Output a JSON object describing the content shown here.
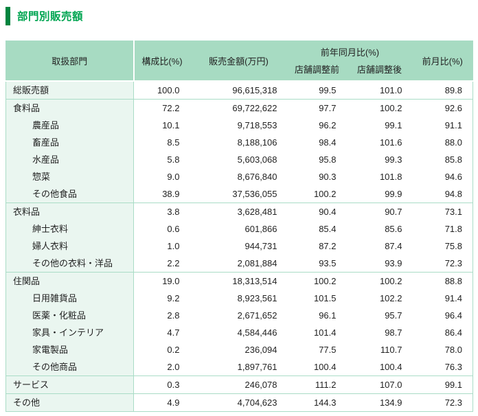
{
  "page": {
    "title": "部門別販売額"
  },
  "colors": {
    "accent_text": "#00a551",
    "accent_bar": "#00843f",
    "header_bg": "#a7dbc2",
    "label_column_bg": "#eaf6f0",
    "table_border": "#a9dcc6",
    "text": "#222222"
  },
  "table": {
    "header": {
      "department": "取扱部門",
      "composition": "構成比(%)",
      "sales_amount": "販売金額(万円)",
      "yoy_group": "前年同月比(%)",
      "yoy_before": "店舗調整前",
      "yoy_after": "店舗調整後",
      "mom": "前月比(%)"
    },
    "rows": [
      {
        "label": "総販売額",
        "indent": 0,
        "section_start": false,
        "composition": "100.0",
        "sales": "96,615,318",
        "yoy_before": "99.5",
        "yoy_after": "101.0",
        "mom": "89.8"
      },
      {
        "label": "食料品",
        "indent": 0,
        "section_start": true,
        "composition": "72.2",
        "sales": "69,722,622",
        "yoy_before": "97.7",
        "yoy_after": "100.2",
        "mom": "92.6"
      },
      {
        "label": "農産品",
        "indent": 1,
        "section_start": false,
        "composition": "10.1",
        "sales": "9,718,553",
        "yoy_before": "96.2",
        "yoy_after": "99.1",
        "mom": "91.1"
      },
      {
        "label": "畜産品",
        "indent": 1,
        "section_start": false,
        "composition": "8.5",
        "sales": "8,188,106",
        "yoy_before": "98.4",
        "yoy_after": "101.6",
        "mom": "88.0"
      },
      {
        "label": "水産品",
        "indent": 1,
        "section_start": false,
        "composition": "5.8",
        "sales": "5,603,068",
        "yoy_before": "95.8",
        "yoy_after": "99.3",
        "mom": "85.8"
      },
      {
        "label": "惣菜",
        "indent": 1,
        "section_start": false,
        "composition": "9.0",
        "sales": "8,676,840",
        "yoy_before": "90.3",
        "yoy_after": "101.8",
        "mom": "94.6"
      },
      {
        "label": "その他食品",
        "indent": 1,
        "section_start": false,
        "composition": "38.9",
        "sales": "37,536,055",
        "yoy_before": "100.2",
        "yoy_after": "99.9",
        "mom": "94.8"
      },
      {
        "label": "衣料品",
        "indent": 0,
        "section_start": true,
        "composition": "3.8",
        "sales": "3,628,481",
        "yoy_before": "90.4",
        "yoy_after": "90.7",
        "mom": "73.1"
      },
      {
        "label": "紳士衣料",
        "indent": 1,
        "section_start": false,
        "composition": "0.6",
        "sales": "601,866",
        "yoy_before": "85.4",
        "yoy_after": "85.6",
        "mom": "71.8"
      },
      {
        "label": "婦人衣料",
        "indent": 1,
        "section_start": false,
        "composition": "1.0",
        "sales": "944,731",
        "yoy_before": "87.2",
        "yoy_after": "87.4",
        "mom": "75.8"
      },
      {
        "label": "その他の衣料・洋品",
        "indent": 1,
        "section_start": false,
        "composition": "2.2",
        "sales": "2,081,884",
        "yoy_before": "93.5",
        "yoy_after": "93.9",
        "mom": "72.3"
      },
      {
        "label": "住関品",
        "indent": 0,
        "section_start": true,
        "composition": "19.0",
        "sales": "18,313,514",
        "yoy_before": "100.2",
        "yoy_after": "100.2",
        "mom": "88.8"
      },
      {
        "label": "日用雑貨品",
        "indent": 1,
        "section_start": false,
        "composition": "9.2",
        "sales": "8,923,561",
        "yoy_before": "101.5",
        "yoy_after": "102.2",
        "mom": "91.4"
      },
      {
        "label": "医薬・化粧品",
        "indent": 1,
        "section_start": false,
        "composition": "2.8",
        "sales": "2,671,652",
        "yoy_before": "96.1",
        "yoy_after": "95.7",
        "mom": "96.4"
      },
      {
        "label": "家具・インテリア",
        "indent": 1,
        "section_start": false,
        "composition": "4.7",
        "sales": "4,584,446",
        "yoy_before": "101.4",
        "yoy_after": "98.7",
        "mom": "86.4"
      },
      {
        "label": "家電製品",
        "indent": 1,
        "section_start": false,
        "composition": "0.2",
        "sales": "236,094",
        "yoy_before": "77.5",
        "yoy_after": "110.7",
        "mom": "78.0"
      },
      {
        "label": "その他商品",
        "indent": 1,
        "section_start": false,
        "composition": "2.0",
        "sales": "1,897,761",
        "yoy_before": "100.4",
        "yoy_after": "100.4",
        "mom": "76.3"
      },
      {
        "label": "サービス",
        "indent": 0,
        "section_start": true,
        "composition": "0.3",
        "sales": "246,078",
        "yoy_before": "111.2",
        "yoy_after": "107.0",
        "mom": "99.1"
      },
      {
        "label": "その他",
        "indent": 0,
        "section_start": true,
        "composition": "4.9",
        "sales": "4,704,623",
        "yoy_before": "144.3",
        "yoy_after": "134.9",
        "mom": "72.3"
      }
    ]
  }
}
